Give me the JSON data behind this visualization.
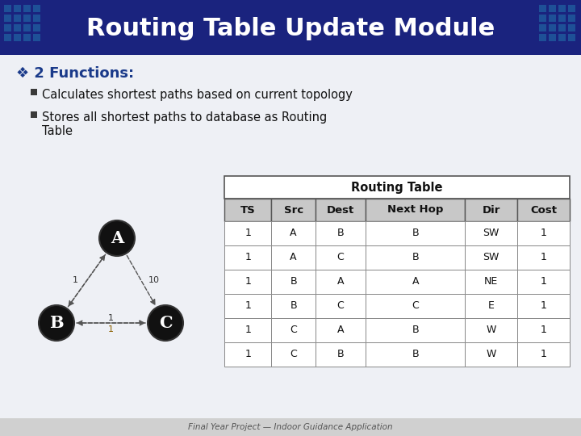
{
  "title": "Routing Table Update Module",
  "title_bg": "#1a237e",
  "title_color": "#ffffff",
  "slide_bg": "#eef0f5",
  "heading_color": "#1a3a8a",
  "heading_text": "❖ 2 Functions:",
  "bullet1": "Calculates shortest paths based on current topology",
  "bullet2a": "Stores all shortest paths to database as Routing",
  "bullet2b": "Table",
  "table_title": "Routing Table",
  "table_headers": [
    "TS",
    "Src",
    "Dest",
    "Next Hop",
    "Dir",
    "Cost"
  ],
  "table_data": [
    [
      "1",
      "A",
      "B",
      "B",
      "SW",
      "1"
    ],
    [
      "1",
      "A",
      "C",
      "B",
      "SW",
      "1"
    ],
    [
      "1",
      "B",
      "A",
      "A",
      "NE",
      "1"
    ],
    [
      "1",
      "B",
      "C",
      "C",
      "E",
      "1"
    ],
    [
      "1",
      "C",
      "A",
      "B",
      "W",
      "1"
    ],
    [
      "1",
      "C",
      "B",
      "B",
      "W",
      "1"
    ]
  ],
  "header_bg": "#c8c8c8",
  "table_border": "#555555",
  "footer_text": "Final Year Project — Indoor Guidance Application",
  "footer_color": "#555555",
  "footer_bg": "#d0d0d0",
  "node_bg": "#111111",
  "node_label_color": "#ffffff",
  "edge_color": "#555555",
  "edge_label_black": "#333333",
  "edge_label_gold": "#8b6000",
  "tile_color": "#2060a0"
}
